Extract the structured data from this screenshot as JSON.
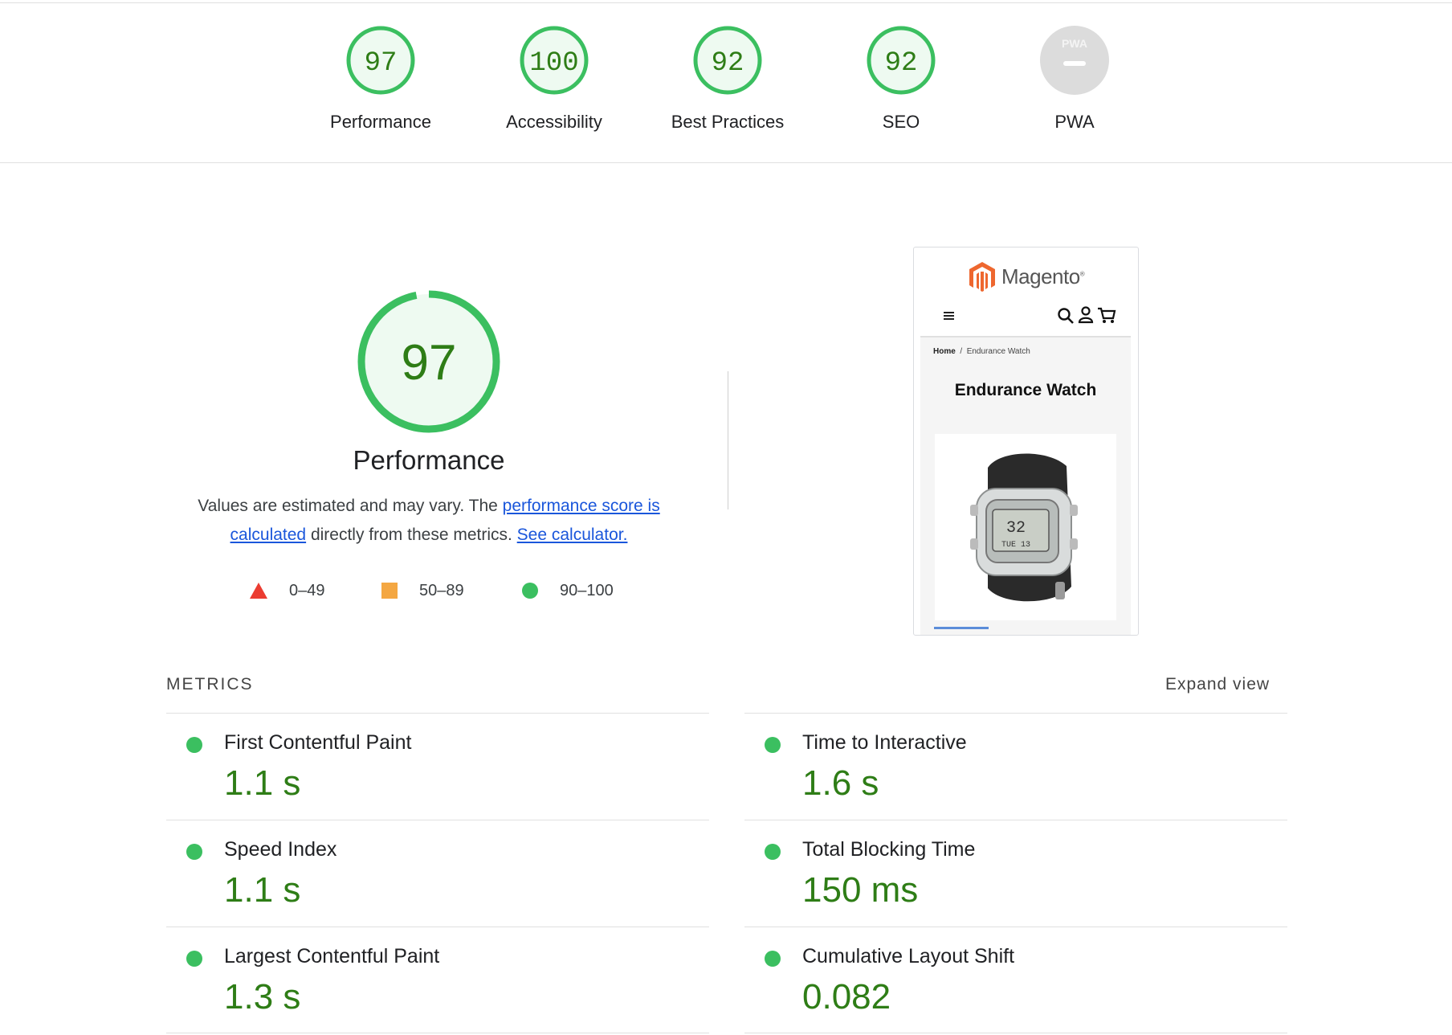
{
  "gauges": [
    {
      "score": "97",
      "label": "Performance",
      "color": "#0cce6b"
    },
    {
      "score": "100",
      "label": "Accessibility",
      "color": "#0cce6b"
    },
    {
      "score": "92",
      "label": "Best Practices",
      "color": "#0cce6b"
    },
    {
      "score": "92",
      "label": "SEO",
      "color": "#0cce6b"
    },
    {
      "score": "",
      "label": "PWA",
      "badge": "PWA",
      "color": "#d9d9d9"
    }
  ],
  "performance": {
    "score": "97",
    "title": "Performance",
    "desc_prefix": "Values are estimated and may vary. The ",
    "link_score": "performance score is calculated",
    "desc_middle": " directly from these metrics. ",
    "link_calc": "See calculator."
  },
  "legend": [
    {
      "shape": "triangle",
      "range": "0–49",
      "color": "#eb3c31"
    },
    {
      "shape": "square",
      "range": "50–89",
      "color": "#f4a742"
    },
    {
      "shape": "circle",
      "range": "90–100",
      "color": "#3bbf60"
    }
  ],
  "screenshot": {
    "logo": "Magento",
    "logo_mark": "®",
    "breadcrumb_home": "Home",
    "breadcrumb_sep": "/",
    "breadcrumb_page": "Endurance Watch",
    "product_title": "Endurance Watch",
    "watch_time": "32",
    "watch_date": "TUE 13"
  },
  "metrics": {
    "heading": "METRICS",
    "expand": "Expand view",
    "items": [
      {
        "title": "First Contentful Paint",
        "value": "1.1 s"
      },
      {
        "title": "Time to Interactive",
        "value": "1.6 s"
      },
      {
        "title": "Speed Index",
        "value": "1.1 s"
      },
      {
        "title": "Total Blocking Time",
        "value": "150 ms"
      },
      {
        "title": "Largest Contentful Paint",
        "value": "1.3 s"
      },
      {
        "title": "Cumulative Layout Shift",
        "value": "0.082"
      }
    ]
  }
}
